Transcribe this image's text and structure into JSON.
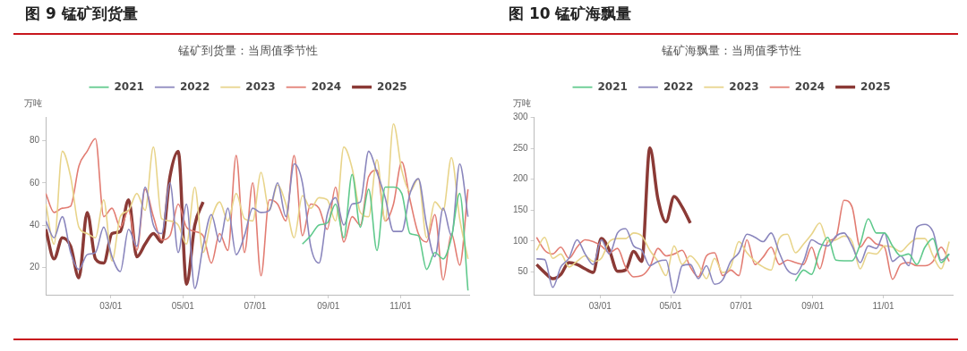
{
  "chart_data": [
    {
      "type": "line",
      "title": "图 9 锰矿到货量",
      "subtitle": "锰矿到货量：当周值季节性",
      "ylabel": "万吨",
      "legend": "top",
      "grid": false,
      "marker": "none",
      "x": [
        "--01-05",
        "--01-12",
        "--01-19",
        "--01-26",
        "--02-02",
        "--02-09",
        "--02-16",
        "--02-23",
        "--03-02",
        "--03-09",
        "--03-16",
        "--03-23",
        "--03-30",
        "--04-06",
        "--04-13",
        "--04-20",
        "--04-27",
        "--05-04",
        "--05-11",
        "--05-18",
        "--05-25",
        "--06-01",
        "--06-08",
        "--06-15",
        "--06-22",
        "--06-29",
        "--07-06",
        "--07-13",
        "--07-20",
        "--07-27",
        "--08-03",
        "--08-10",
        "--08-17",
        "--08-24",
        "--08-31",
        "--09-07",
        "--09-14",
        "--09-21",
        "--09-28",
        "--10-05",
        "--10-12",
        "--10-19",
        "--10-26",
        "--11-02",
        "--11-09",
        "--11-16",
        "--11-23",
        "--11-30",
        "--12-07",
        "--12-14",
        "--12-21",
        "--12-28"
      ],
      "xlim": [
        "--01-05",
        "--12-29"
      ],
      "xticks": [
        {
          "value": "--03-01",
          "label": "03/01"
        },
        {
          "value": "--05-01",
          "label": "05/01"
        },
        {
          "value": "--07-01",
          "label": "07/01"
        },
        {
          "value": "--09-01",
          "label": "09/01"
        },
        {
          "value": "--11-01",
          "label": "11/01"
        }
      ],
      "ylim": [
        7,
        91
      ],
      "yticks": [
        20,
        40,
        60,
        80
      ],
      "series": [
        {
          "name": "2021",
          "color": "#5fc98c",
          "values": [
            null,
            null,
            null,
            null,
            null,
            null,
            null,
            null,
            null,
            null,
            null,
            null,
            null,
            null,
            null,
            null,
            null,
            null,
            null,
            null,
            null,
            null,
            null,
            null,
            null,
            null,
            null,
            null,
            null,
            null,
            null,
            31,
            35,
            40,
            41,
            50,
            34,
            64,
            39,
            57,
            28,
            58,
            58,
            55,
            36,
            35,
            19,
            27,
            24,
            34,
            55,
            9
          ]
        },
        {
          "name": "2022",
          "color": "#8a86bd",
          "values": [
            42,
            34,
            44,
            27,
            19,
            26,
            27,
            39,
            25,
            18,
            38,
            30,
            58,
            40,
            36,
            60,
            27,
            50,
            10,
            30,
            45,
            32,
            48,
            26,
            35,
            48,
            46,
            47,
            60,
            44,
            69,
            60,
            30,
            22,
            45,
            53,
            40,
            50,
            51,
            75,
            65,
            53,
            37,
            37,
            55,
            62,
            40,
            25,
            48,
            35,
            69,
            44
          ]
        },
        {
          "name": "2023",
          "color": "#e8d48a",
          "values": [
            50,
            31,
            75,
            63,
            39,
            36,
            34,
            52,
            23,
            44,
            47,
            55,
            47,
            77,
            43,
            42,
            40,
            31,
            58,
            27,
            43,
            51,
            42,
            55,
            43,
            42,
            65,
            47,
            59,
            50,
            34,
            54,
            48,
            53,
            52,
            42,
            77,
            67,
            46,
            44,
            71,
            42,
            88,
            66,
            56,
            62,
            34,
            51,
            47,
            72,
            43,
            24
          ]
        },
        {
          "name": "2024",
          "color": "#e27c72",
          "values": [
            55,
            46,
            48,
            49,
            68,
            75,
            81,
            44,
            48,
            39,
            47,
            28,
            57,
            44,
            33,
            35,
            50,
            39,
            37,
            35,
            22,
            36,
            28,
            73,
            27,
            60,
            16,
            52,
            50,
            42,
            73,
            35,
            50,
            48,
            38,
            58,
            32,
            44,
            40,
            63,
            66,
            42,
            50,
            70,
            52,
            36,
            32,
            45,
            14,
            36,
            21,
            57
          ]
        },
        {
          "name": "2025",
          "color": "#8b3a36",
          "values": [
            38,
            24,
            34,
            30,
            15,
            46,
            24,
            22,
            36,
            37,
            52,
            25,
            31,
            36,
            32,
            63,
            75,
            12,
            40,
            51,
            null,
            null,
            null,
            null,
            null,
            null,
            null,
            null,
            null,
            null,
            null,
            null,
            null,
            null,
            null,
            null,
            null,
            null,
            null,
            null,
            null,
            null,
            null,
            null,
            null,
            null,
            null,
            null,
            null,
            null,
            null,
            null
          ]
        }
      ]
    },
    {
      "type": "line",
      "title": "图 10 锰矿海飘量",
      "subtitle": "锰矿海飘量：当周值季节性",
      "ylabel": "万吨",
      "legend": "top",
      "grid": false,
      "marker": "none",
      "x": [
        "--01-05",
        "--01-12",
        "--01-19",
        "--01-26",
        "--02-02",
        "--02-09",
        "--02-16",
        "--02-23",
        "--03-02",
        "--03-09",
        "--03-16",
        "--03-23",
        "--03-30",
        "--04-06",
        "--04-13",
        "--04-20",
        "--04-27",
        "--05-04",
        "--05-11",
        "--05-18",
        "--05-25",
        "--06-01",
        "--06-08",
        "--06-15",
        "--06-22",
        "--06-29",
        "--07-06",
        "--07-13",
        "--07-20",
        "--07-27",
        "--08-03",
        "--08-10",
        "--08-17",
        "--08-24",
        "--08-31",
        "--09-07",
        "--09-14",
        "--09-21",
        "--09-28",
        "--10-05",
        "--10-12",
        "--10-19",
        "--10-26",
        "--11-02",
        "--11-09",
        "--11-16",
        "--11-23",
        "--11-30",
        "--12-07",
        "--12-14",
        "--12-21",
        "--12-28"
      ],
      "xlim": [
        "--01-03",
        "--12-31"
      ],
      "xticks": [
        {
          "value": "--03-01",
          "label": "03/01"
        },
        {
          "value": "--05-01",
          "label": "05/01"
        },
        {
          "value": "--07-01",
          "label": "07/01"
        },
        {
          "value": "--09-01",
          "label": "09/01"
        },
        {
          "value": "--11-01",
          "label": "11/01"
        }
      ],
      "ylim": [
        13,
        300
      ],
      "yticks": [
        50,
        100,
        150,
        200,
        250,
        300
      ],
      "series": [
        {
          "name": "2021",
          "color": "#5fc98c",
          "values": [
            null,
            null,
            null,
            null,
            null,
            null,
            null,
            null,
            null,
            null,
            null,
            null,
            null,
            null,
            null,
            null,
            null,
            null,
            null,
            null,
            null,
            null,
            null,
            null,
            null,
            null,
            null,
            null,
            null,
            null,
            null,
            null,
            35,
            53,
            46,
            85,
            106,
            69,
            68,
            68,
            95,
            136,
            113,
            113,
            92,
            76,
            79,
            62,
            90,
            104,
            65,
            79
          ]
        },
        {
          "name": "2022",
          "color": "#8a86bd",
          "values": [
            71,
            70,
            25,
            58,
            72,
            102,
            79,
            62,
            102,
            79,
            113,
            120,
            92,
            85,
            60,
            67,
            69,
            16,
            60,
            62,
            39,
            60,
            30,
            37,
            67,
            81,
            111,
            106,
            99,
            113,
            81,
            53,
            46,
            67,
            102,
            95,
            92,
            108,
            113,
            92,
            65,
            92,
            88,
            113,
            67,
            76,
            60,
            122,
            127,
            115,
            69,
            79
          ]
        },
        {
          "name": "2023",
          "color": "#e8d48a",
          "values": [
            85,
            106,
            72,
            79,
            58,
            67,
            76,
            67,
            72,
            99,
            104,
            104,
            113,
            108,
            85,
            67,
            44,
            92,
            62,
            76,
            62,
            39,
            72,
            49,
            58,
            99,
            81,
            67,
            58,
            53,
            104,
            111,
            81,
            95,
            111,
            129,
            99,
            102,
            108,
            99,
            55,
            81,
            79,
            92,
            90,
            83,
            95,
            104,
            104,
            76,
            55,
            99
          ]
        },
        {
          "name": "2024",
          "color": "#e27c72",
          "values": [
            106,
            85,
            79,
            90,
            72,
            90,
            102,
            99,
            92,
            81,
            88,
            58,
            42,
            44,
            58,
            88,
            76,
            79,
            85,
            58,
            42,
            76,
            81,
            44,
            53,
            44,
            102,
            62,
            74,
            90,
            62,
            69,
            65,
            62,
            90,
            55,
            99,
            106,
            166,
            155,
            90,
            106,
            95,
            90,
            38,
            62,
            65,
            60,
            60,
            67,
            90,
            67
          ]
        },
        {
          "name": "2025",
          "color": "#8b3a36",
          "values": [
            62,
            49,
            39,
            46,
            65,
            62,
            55,
            49,
            104,
            85,
            51,
            53,
            83,
            67,
            251,
            168,
            131,
            172,
            155,
            129,
            null,
            null,
            null,
            null,
            null,
            null,
            null,
            null,
            null,
            null,
            null,
            null,
            null,
            null,
            null,
            null,
            null,
            null,
            null,
            null,
            null,
            null,
            null,
            null,
            null,
            null,
            null,
            null,
            null,
            null,
            null,
            null
          ]
        }
      ]
    }
  ]
}
